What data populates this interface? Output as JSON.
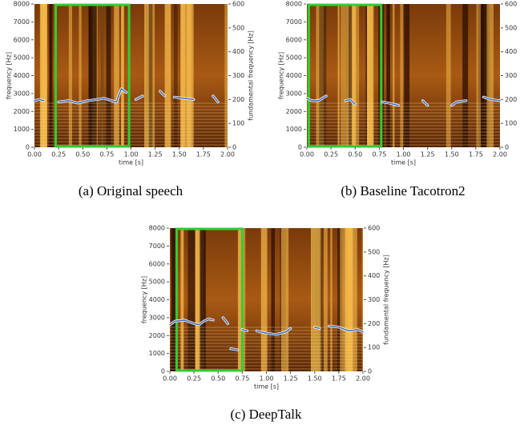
{
  "chart_data": [
    {
      "type": "spectrogram",
      "caption": "(a) Original speech",
      "xlabel": "time [s]",
      "ylabel": "frequency [Hz]",
      "y2label": "fundamental frequency [Hz]",
      "xlim": [
        0,
        2
      ],
      "xticks": [
        {
          "value": 0,
          "label": "0.00"
        },
        {
          "value": 0.25,
          "label": "0.25"
        },
        {
          "value": 0.5,
          "label": "0.50"
        },
        {
          "value": 0.75,
          "label": "0.75"
        },
        {
          "value": 1,
          "label": "1.00"
        },
        {
          "value": 1.25,
          "label": "1.25"
        },
        {
          "value": 1.5,
          "label": "1.50"
        },
        {
          "value": 1.75,
          "label": "1.75"
        },
        {
          "value": 2,
          "label": "2.00"
        }
      ],
      "ylim": [
        0,
        8000
      ],
      "yticks": [
        0,
        1000,
        2000,
        3000,
        4000,
        5000,
        6000,
        7000,
        8000
      ],
      "y2lim": [
        0,
        600
      ],
      "y2ticks": [
        0,
        100,
        200,
        300,
        400,
        500,
        600
      ],
      "highlight": [
        0.22,
        0.98
      ],
      "highlight_color": "#33cc33",
      "series": [
        {
          "axis": "y2",
          "color": "#4a6fb5",
          "x": [
            0,
            0.05,
            0.1,
            0.15,
            0.25,
            0.35,
            0.45,
            0.55,
            0.65,
            0.72,
            0.8,
            0.85,
            0.9,
            0.95,
            0.97,
            1.05,
            1.12,
            1.17,
            1.3,
            1.35,
            1.4,
            1.45,
            1.55,
            1.65,
            1.7,
            1.85,
            1.9
          ],
          "values": [
            195,
            200,
            195,
            null,
            190,
            195,
            185,
            195,
            200,
            205,
            195,
            190,
            245,
            230,
            null,
            200,
            215,
            null,
            235,
            215,
            null,
            210,
            205,
            200,
            null,
            215,
            190
          ]
        }
      ]
    },
    {
      "type": "spectrogram",
      "caption": "(b) Baseline Tacotron2",
      "xlabel": "time [s]",
      "ylabel": "frequency [Hz]",
      "y2label": "fundamental frequency [Hz]",
      "xlim": [
        0,
        2
      ],
      "xticks": [
        {
          "value": 0,
          "label": "0.00"
        },
        {
          "value": 0.25,
          "label": "0.25"
        },
        {
          "value": 0.5,
          "label": "0.50"
        },
        {
          "value": 0.75,
          "label": "0.75"
        },
        {
          "value": 1,
          "label": "1.00"
        },
        {
          "value": 1.25,
          "label": "1.25"
        },
        {
          "value": 1.5,
          "label": "1.50"
        },
        {
          "value": 1.75,
          "label": "1.75"
        },
        {
          "value": 2,
          "label": "2.00"
        }
      ],
      "ylim": [
        0,
        8000
      ],
      "yticks": [
        0,
        1000,
        2000,
        3000,
        4000,
        5000,
        6000,
        7000,
        8000
      ],
      "y2lim": [
        0,
        600
      ],
      "y2ticks": [
        0,
        100,
        200,
        300,
        400,
        500,
        600
      ],
      "highlight": [
        0.02,
        0.77
      ],
      "highlight_color": "#33cc33",
      "series": [
        {
          "axis": "y2",
          "color": "#4a6fb5",
          "x": [
            0,
            0.05,
            0.12,
            0.2,
            0.25,
            0.3,
            0.35,
            0.4,
            0.45,
            0.5,
            0.55,
            0.65,
            0.7,
            0.78,
            0.85,
            0.95,
            1.0,
            1.2,
            1.25,
            1.3,
            1.35,
            1.4,
            1.5,
            1.55,
            1.65,
            1.7,
            1.83,
            1.9,
            2.0
          ],
          "values": [
            205,
            195,
            195,
            215,
            null,
            215,
            null,
            195,
            200,
            180,
            null,
            210,
            null,
            190,
            185,
            175,
            null,
            195,
            175,
            null,
            175,
            null,
            175,
            190,
            195,
            null,
            210,
            200,
            195
          ]
        }
      ]
    },
    {
      "type": "spectrogram",
      "caption": "(c) DeepTalk",
      "xlabel": "time [s]",
      "ylabel": "frequency [Hz]",
      "y2label": "fundamental frequency [Hz]",
      "xlim": [
        0,
        2
      ],
      "xticks": [
        {
          "value": 0,
          "label": "0.00"
        },
        {
          "value": 0.25,
          "label": "0.25"
        },
        {
          "value": 0.5,
          "label": "0.50"
        },
        {
          "value": 0.75,
          "label": "0.75"
        },
        {
          "value": 1,
          "label": "1.00"
        },
        {
          "value": 1.25,
          "label": "1.25"
        },
        {
          "value": 1.5,
          "label": "1.50"
        },
        {
          "value": 1.75,
          "label": "1.75"
        },
        {
          "value": 2,
          "label": "2.00"
        }
      ],
      "ylim": [
        0,
        8000
      ],
      "yticks": [
        0,
        1000,
        2000,
        3000,
        4000,
        5000,
        6000,
        7000,
        8000
      ],
      "y2lim": [
        0,
        600
      ],
      "y2ticks": [
        0,
        100,
        200,
        300,
        400,
        500,
        600
      ],
      "highlight": [
        0.07,
        0.75
      ],
      "highlight_color": "#33cc33",
      "series": [
        {
          "axis": "y2",
          "color": "#4a6fb5",
          "x": [
            0,
            0.05,
            0.15,
            0.25,
            0.3,
            0.35,
            0.4,
            0.45,
            0.5,
            0.55,
            0.6,
            0.62,
            0.63,
            0.7,
            0.72,
            0.75,
            0.8,
            0.85,
            0.9,
            1.0,
            1.1,
            1.2,
            1.25,
            1.3,
            1.5,
            1.55,
            1.6,
            1.65,
            1.75,
            1.85,
            1.95,
            2.0
          ],
          "values": [
            195,
            210,
            215,
            200,
            195,
            210,
            220,
            215,
            null,
            225,
            200,
            null,
            95,
            90,
            null,
            175,
            170,
            null,
            170,
            160,
            155,
            165,
            180,
            null,
            185,
            180,
            null,
            190,
            185,
            170,
            175,
            165
          ]
        }
      ]
    }
  ]
}
